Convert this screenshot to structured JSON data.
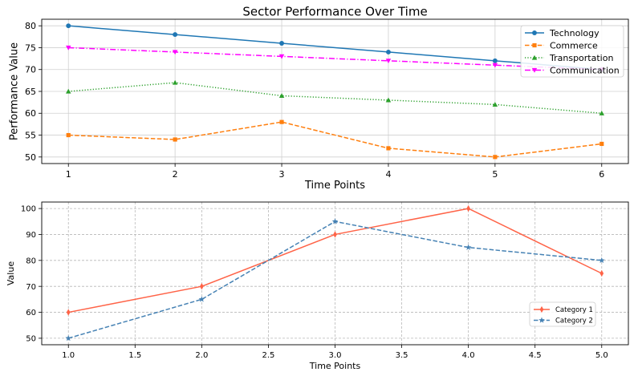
{
  "chart_data": [
    {
      "type": "line",
      "title": "Sector Performance Over Time",
      "xlabel": "Time Points",
      "ylabel": "Performance Value",
      "x": [
        1,
        2,
        3,
        4,
        5,
        6
      ],
      "xlim": [
        0.75,
        6.25
      ],
      "ylim": [
        48.5,
        81.5
      ],
      "xticks": [
        "1",
        "2",
        "3",
        "4",
        "5",
        "6"
      ],
      "yticks": [
        "50",
        "55",
        "60",
        "65",
        "70",
        "75",
        "80"
      ],
      "grid": true,
      "legend": "upper-right",
      "series": [
        {
          "name": "Technology",
          "values": [
            80,
            78,
            76,
            74,
            72,
            70
          ],
          "color": "#1f77b4",
          "dash": "solid",
          "marker": "circle"
        },
        {
          "name": "Commerce",
          "values": [
            55,
            54,
            58,
            52,
            50,
            53
          ],
          "color": "#ff7f0e",
          "dash": "dashed",
          "marker": "square"
        },
        {
          "name": "Transportation",
          "values": [
            65,
            67,
            64,
            63,
            62,
            60
          ],
          "color": "#2ca02c",
          "dash": "dotted",
          "marker": "triangle-up"
        },
        {
          "name": "Communication",
          "values": [
            75,
            74,
            73,
            72,
            71,
            70
          ],
          "color": "#ff00ff",
          "dash": "dashdot",
          "marker": "triangle-down"
        }
      ]
    },
    {
      "type": "line",
      "title": "",
      "xlabel": "Time Points",
      "ylabel": "Value",
      "x": [
        1,
        2,
        3,
        4,
        5
      ],
      "xlim": [
        0.8,
        5.2
      ],
      "ylim": [
        47.5,
        102.5
      ],
      "xticks": [
        "1.0",
        "1.5",
        "2.0",
        "2.5",
        "3.0",
        "3.5",
        "4.0",
        "4.5",
        "5.0"
      ],
      "yticks": [
        "50",
        "60",
        "70",
        "80",
        "90",
        "100"
      ],
      "grid": true,
      "legend": "lower-right",
      "series": [
        {
          "name": "Category 1",
          "values": [
            60,
            70,
            90,
            100,
            75
          ],
          "color": "#ff6347",
          "dash": "solid",
          "marker": "thin-diamond"
        },
        {
          "name": "Category 2",
          "values": [
            50,
            65,
            95,
            85,
            80
          ],
          "color": "#4682b4",
          "dash": "dashed",
          "marker": "star"
        }
      ]
    }
  ]
}
